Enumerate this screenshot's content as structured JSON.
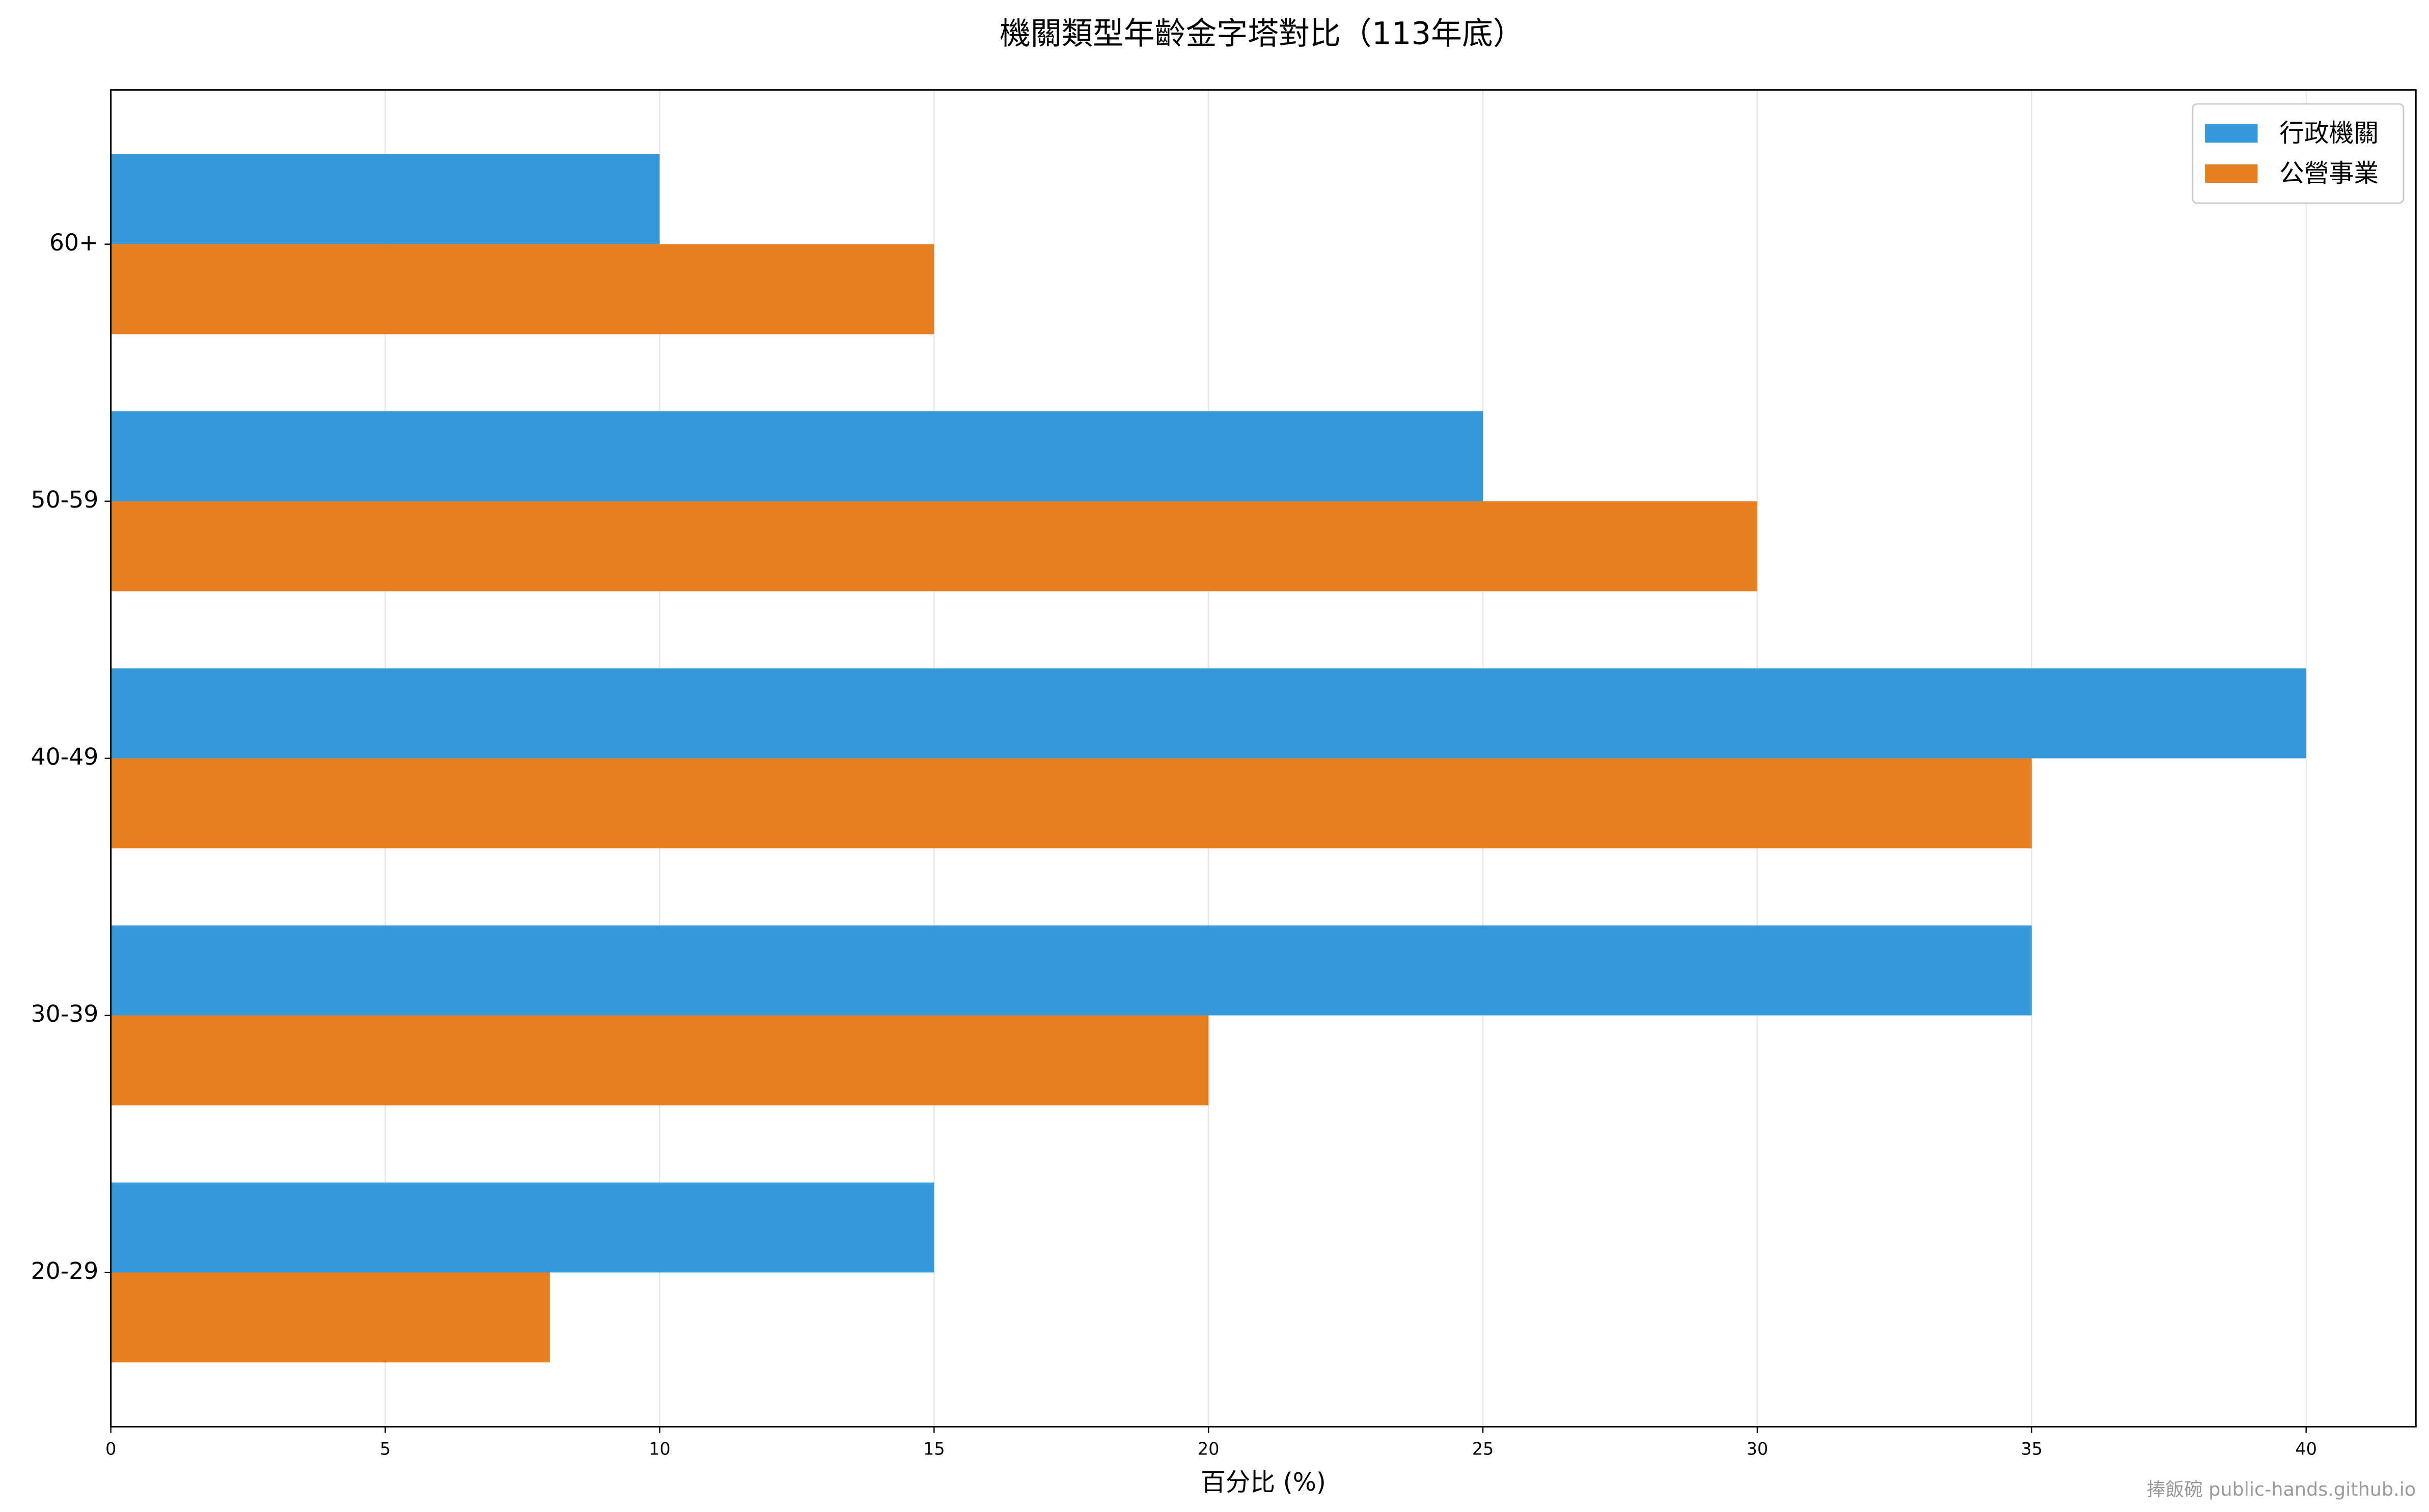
{
  "chart_data": {
    "type": "barh",
    "title": "機關類型年齡金字塔對比（113年底）",
    "xlabel": "百分比 (%)",
    "watermark": "捧飯碗 public-hands.github.io",
    "categories": [
      "20-29",
      "30-39",
      "40-49",
      "50-59",
      "60+"
    ],
    "series": [
      {
        "name": "行政機關",
        "color": "#3498db",
        "values": [
          15,
          35,
          40,
          25,
          10
        ]
      },
      {
        "name": "公營事業",
        "color": "#e67e22",
        "values": [
          8,
          20,
          35,
          30,
          15
        ]
      }
    ],
    "xlim": [
      0,
      42
    ],
    "xticks": [
      0,
      5,
      10,
      15,
      20,
      25,
      30,
      35,
      40
    ],
    "ylim": [
      -0.6,
      4.6
    ],
    "grid": true,
    "legend": "upper right"
  }
}
